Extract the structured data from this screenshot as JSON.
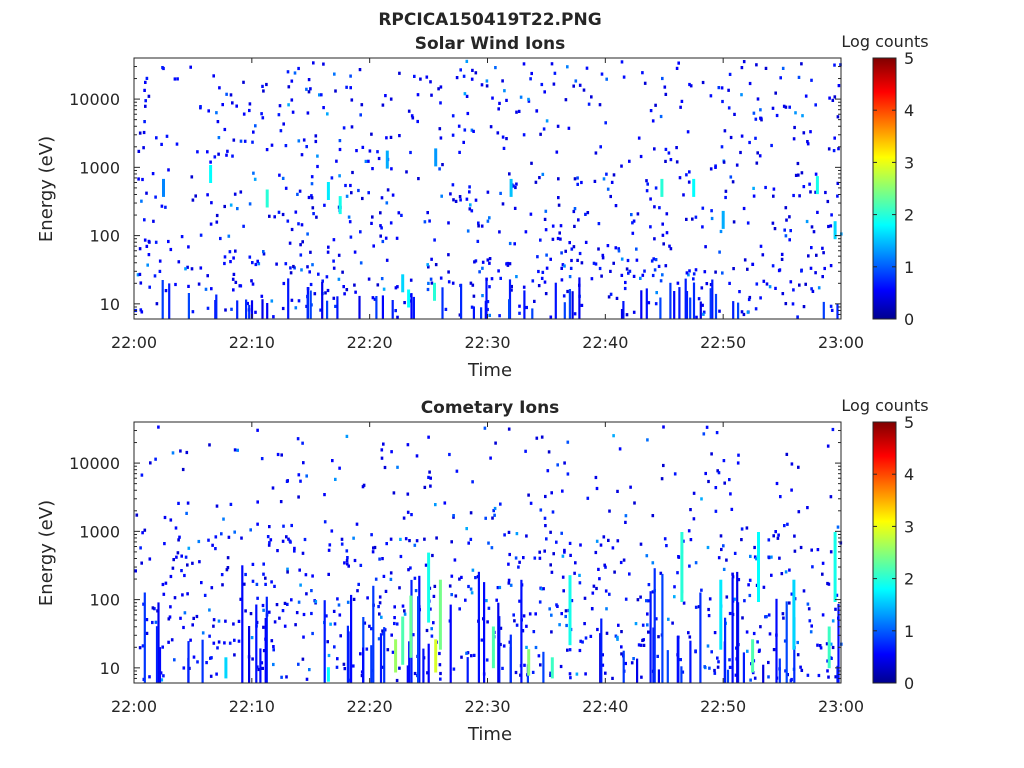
{
  "figure_title": "RPCICA150419T22.PNG",
  "chart_data": [
    {
      "type": "heatmap",
      "title": "Solar Wind Ions",
      "xlabel": "Time",
      "ylabel": "Energy (eV)",
      "x_ticks": [
        "22:00",
        "22:10",
        "22:20",
        "22:30",
        "22:40",
        "22:50",
        "23:00"
      ],
      "x_range": [
        "22:00",
        "23:00"
      ],
      "y_ticks": [
        "10",
        "100",
        "1000",
        "10000"
      ],
      "y_range": [
        6,
        40000
      ],
      "y_scale": "log",
      "colorbar": {
        "label": "Log counts",
        "range": [
          0,
          5
        ],
        "ticks": [
          "0",
          "1",
          "2",
          "3",
          "4",
          "5"
        ],
        "colormap": "jet"
      },
      "hotspots": [
        {
          "time_min": 2.5,
          "energy_eV": 500,
          "log_counts": 1.2
        },
        {
          "time_min": 6.5,
          "energy_eV": 800,
          "log_counts": 1.8
        },
        {
          "time_min": 11.3,
          "energy_eV": 350,
          "log_counts": 2.0
        },
        {
          "time_min": 16.5,
          "energy_eV": 450,
          "log_counts": 1.7
        },
        {
          "time_min": 17.5,
          "energy_eV": 280,
          "log_counts": 1.9
        },
        {
          "time_min": 21.5,
          "energy_eV": 1300,
          "log_counts": 1.4
        },
        {
          "time_min": 22.8,
          "energy_eV": 20,
          "log_counts": 1.6
        },
        {
          "time_min": 23.3,
          "energy_eV": 12,
          "log_counts": 1.8
        },
        {
          "time_min": 25.5,
          "energy_eV": 15,
          "log_counts": 2.0
        },
        {
          "time_min": 25.6,
          "energy_eV": 1400,
          "log_counts": 1.3
        },
        {
          "time_min": 32.0,
          "energy_eV": 500,
          "log_counts": 1.5
        },
        {
          "time_min": 44.8,
          "energy_eV": 500,
          "log_counts": 2.0
        },
        {
          "time_min": 47.5,
          "energy_eV": 500,
          "log_counts": 1.8
        },
        {
          "time_min": 50.0,
          "energy_eV": 170,
          "log_counts": 1.4
        },
        {
          "time_min": 58.0,
          "energy_eV": 550,
          "log_counts": 1.9
        },
        {
          "time_min": 59.5,
          "energy_eV": 120,
          "log_counts": 1.6
        }
      ]
    },
    {
      "type": "heatmap",
      "title": "Cometary Ions",
      "xlabel": "Time",
      "ylabel": "Energy (eV)",
      "x_ticks": [
        "22:00",
        "22:10",
        "22:20",
        "22:30",
        "22:40",
        "22:50",
        "23:00"
      ],
      "x_range": [
        "22:00",
        "23:00"
      ],
      "y_ticks": [
        "10",
        "100",
        "1000",
        "10000"
      ],
      "y_range": [
        6,
        40000
      ],
      "y_scale": "log",
      "colorbar": {
        "label": "Log counts",
        "range": [
          0,
          5
        ],
        "ticks": [
          "0",
          "1",
          "2",
          "3",
          "4",
          "5"
        ],
        "colormap": "jet"
      },
      "hotspots": [
        {
          "time_min": 7.8,
          "energy_eV": 10,
          "log_counts": 1.6
        },
        {
          "time_min": 16.5,
          "energy_eV": 8,
          "log_counts": 1.8
        },
        {
          "time_min": 22.2,
          "energy_eV": 15,
          "log_counts": 2.6
        },
        {
          "time_min": 22.8,
          "energy_eV": 25,
          "log_counts": 2.2
        },
        {
          "time_min": 23.5,
          "energy_eV": 40,
          "log_counts": 2.3
        },
        {
          "time_min": 25.0,
          "energy_eV": 150,
          "log_counts": 1.9
        },
        {
          "time_min": 25.6,
          "energy_eV": 15,
          "log_counts": 2.9
        },
        {
          "time_min": 26.0,
          "energy_eV": 60,
          "log_counts": 2.4
        },
        {
          "time_min": 30.5,
          "energy_eV": 20,
          "log_counts": 2.2
        },
        {
          "time_min": 33.5,
          "energy_eV": 12,
          "log_counts": 2.5
        },
        {
          "time_min": 35.5,
          "energy_eV": 10,
          "log_counts": 2.1
        },
        {
          "time_min": 37.0,
          "energy_eV": 70,
          "log_counts": 1.9
        },
        {
          "time_min": 46.5,
          "energy_eV": 300,
          "log_counts": 2.0
        },
        {
          "time_min": 49.8,
          "energy_eV": 60,
          "log_counts": 1.7
        },
        {
          "time_min": 52.5,
          "energy_eV": 15,
          "log_counts": 2.2
        },
        {
          "time_min": 53.0,
          "energy_eV": 300,
          "log_counts": 1.8
        },
        {
          "time_min": 56.0,
          "energy_eV": 60,
          "log_counts": 1.6
        },
        {
          "time_min": 59.0,
          "energy_eV": 20,
          "log_counts": 2.1
        },
        {
          "time_min": 59.5,
          "energy_eV": 300,
          "log_counts": 1.9
        }
      ]
    }
  ]
}
